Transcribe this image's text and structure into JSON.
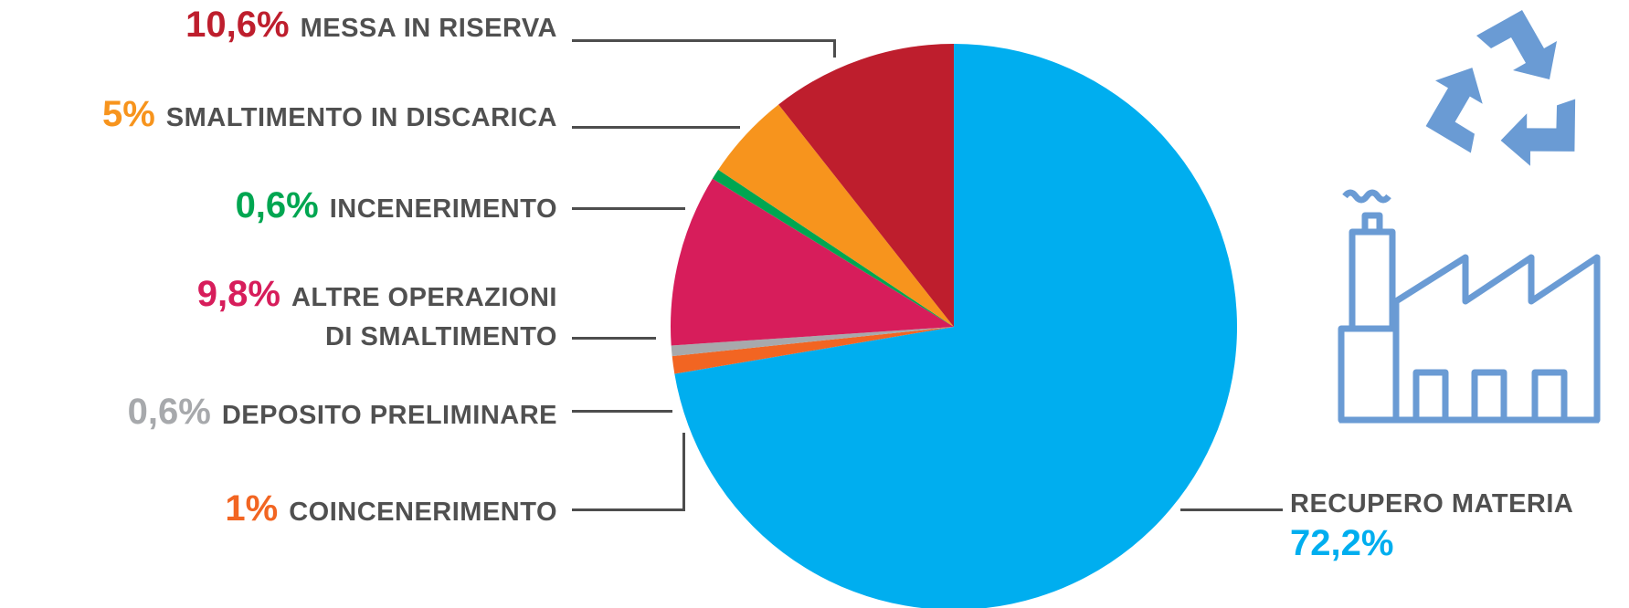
{
  "chart_data": {
    "type": "pie",
    "title": "",
    "unit": "%",
    "start_angle_deg": 0,
    "direction": "clockwise",
    "slices": [
      {
        "label": "RECUPERO MATERIA",
        "value": 72.2,
        "display": "72,2%",
        "color": "#00AEEF"
      },
      {
        "label": "COINCENERIMENTO",
        "value": 1,
        "display": "1%",
        "color": "#F26522"
      },
      {
        "label": "DEPOSITO PRELIMINARE",
        "value": 0.6,
        "display": "0,6%",
        "color": "#A7A9AC"
      },
      {
        "label": "ALTRE OPERAZIONI DI SMALTIMENTO",
        "label_lines": [
          "ALTRE OPERAZIONI",
          "DI SMALTIMENTO"
        ],
        "value": 9.8,
        "display": "9,8%",
        "color": "#D71D5B"
      },
      {
        "label": "INCENERIMENTO",
        "value": 0.6,
        "display": "0,6%",
        "color": "#00A651"
      },
      {
        "label": "SMALTIMENTO IN DISCARICA",
        "value": 5,
        "display": "5%",
        "color": "#F7941D"
      },
      {
        "label": "MESSA IN RISERVA",
        "value": 10.6,
        "display": "10,6%",
        "color": "#BE1E2D"
      }
    ]
  },
  "icons": {
    "recycle": "recycle-icon",
    "factory": "factory-icon",
    "icon_color": "#6A9BD4"
  }
}
